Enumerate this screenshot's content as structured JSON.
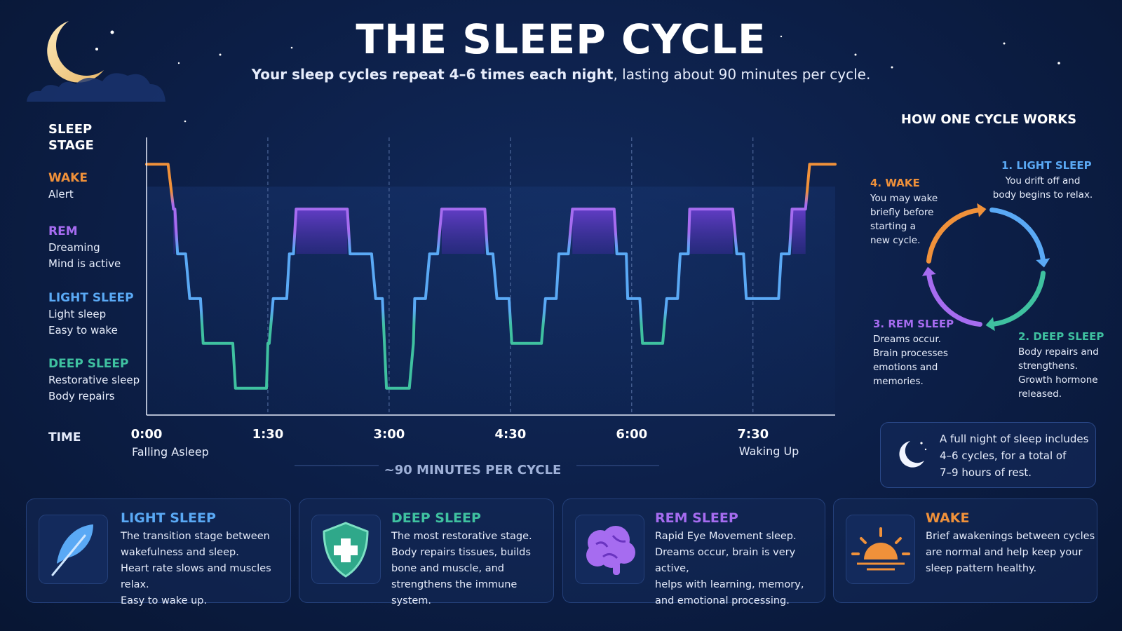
{
  "header": {
    "title": "THE SLEEP CYCLE",
    "subtitle": [
      "Your sleep cycles repeat ",
      "4–6 times each night",
      ", lasting about 90 minutes per cycle."
    ]
  },
  "chart_data": {
    "type": "line",
    "y_label": "SLEEP STAGE",
    "x_label": "TIME",
    "stages": [
      {
        "name": "WAKE",
        "color": "#f0913a",
        "notes": [
          "Alert"
        ]
      },
      {
        "name": "REM",
        "color": "#a66cf0",
        "notes": [
          "Dreaming",
          "Mind is active"
        ]
      },
      {
        "name": "LIGHT SLEEP",
        "color": "#5aa9f5",
        "notes": [
          "Light sleep",
          "Easy to wake"
        ]
      },
      {
        "name": "DEEP SLEEP",
        "color": "#3fc1a0",
        "notes": [
          "Restorative sleep",
          "Body repairs"
        ]
      }
    ],
    "x": [
      0,
      16,
      20,
      21,
      23,
      29,
      32,
      40,
      42,
      64,
      66,
      89,
      90,
      91,
      94,
      104,
      106,
      109,
      111,
      149,
      151,
      167,
      170,
      175,
      178,
      195,
      198,
      199,
      207,
      210,
      216,
      219,
      251,
      253,
      257,
      260,
      269,
      271,
      293,
      296,
      304,
      306,
      313,
      316,
      347,
      349,
      356,
      357,
      366,
      368,
      383,
      386,
      394,
      396,
      402,
      403,
      435,
      438,
      443,
      445,
      469,
      471,
      477,
      479,
      489,
      492,
      511
    ],
    "values": [
      5,
      5,
      4,
      4,
      3,
      3,
      2,
      2,
      1,
      1,
      0,
      0,
      1,
      1,
      2,
      2,
      3,
      3,
      4,
      4,
      3,
      3,
      2,
      2,
      0,
      0,
      1,
      2,
      2,
      3,
      3,
      4,
      4,
      3,
      3,
      2,
      2,
      1,
      1,
      2,
      2,
      3,
      3,
      4,
      4,
      3,
      3,
      2,
      2,
      1,
      1,
      2,
      2,
      3,
      3,
      4,
      4,
      3,
      3,
      2,
      2,
      3,
      3,
      4,
      4,
      5,
      5
    ],
    "xlim": [
      0,
      511
    ],
    "ylim": [
      -0.6,
      5.6
    ],
    "xticks": [
      {
        "value": 0,
        "label": "0:00"
      },
      {
        "value": 90,
        "label": "1:30"
      },
      {
        "value": 180,
        "label": "3:00"
      },
      {
        "value": 270,
        "label": "4:30"
      },
      {
        "value": 360,
        "label": "6:00"
      },
      {
        "value": 450,
        "label": "7:30"
      }
    ],
    "start_label": "Falling Asleep",
    "end_label": "Waking Up",
    "caption": "~90 MINUTES PER CYCLE",
    "grid": true
  },
  "cycle": {
    "title": "HOW ONE CYCLE WORKS",
    "steps": [
      {
        "title": "1. LIGHT SLEEP",
        "color": "#5aa9f5",
        "desc": [
          "You drift off and",
          "body begins to relax."
        ]
      },
      {
        "title": "2. DEEP SLEEP",
        "color": "#3fc1a0",
        "desc": [
          "Body repairs and",
          "strengthens.",
          "Growth hormone",
          "released."
        ]
      },
      {
        "title": "3. REM SLEEP",
        "color": "#a66cf0",
        "desc": [
          "Dreams occur.",
          "Brain processes",
          "emotions and",
          "memories."
        ]
      },
      {
        "title": "4. WAKE",
        "color": "#f0913a",
        "desc": [
          "You may wake",
          "briefly before",
          "starting a",
          "new cycle."
        ]
      }
    ]
  },
  "note": {
    "lines": [
      "A full night of sleep includes",
      "4–6 cycles, for a total of",
      "7–9 hours of rest."
    ]
  },
  "cards": [
    {
      "title": "LIGHT SLEEP",
      "color": "#5aa9f5",
      "lines": [
        "The transition stage between",
        "wakefulness and sleep.",
        "Heart rate slows and muscles relax.",
        "Easy to wake up."
      ]
    },
    {
      "title": "DEEP SLEEP",
      "color": "#3fc1a0",
      "lines": [
        "The most restorative stage.",
        "Body repairs tissues, builds",
        "bone and muscle, and",
        "strengthens the immune system."
      ]
    },
    {
      "title": "REM SLEEP",
      "color": "#a66cf0",
      "lines": [
        "Rapid Eye Movement sleep.",
        "Dreams occur, brain is very active,",
        "helps with learning, memory,",
        "and emotional processing."
      ]
    },
    {
      "title": "WAKE",
      "color": "#f0913a",
      "lines": [
        "Brief awakenings between cycles",
        "are normal and help keep your",
        "sleep pattern healthy."
      ]
    }
  ]
}
